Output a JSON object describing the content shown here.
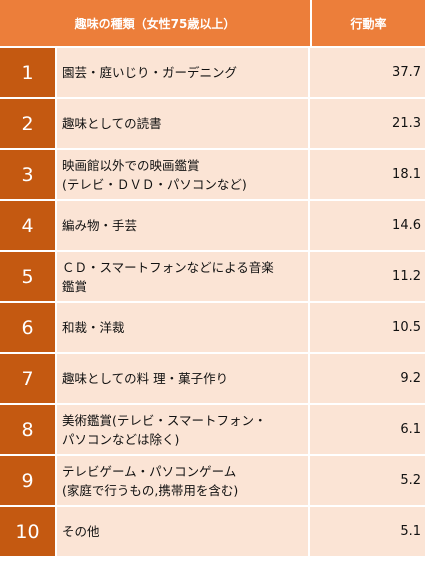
{
  "header": {
    "hobby_label": "趣味の種類（女性75歳以上）",
    "rate_label": "行動率"
  },
  "rows": [
    {
      "rank": "1",
      "hobby": "園芸・庭いじり・ガーデニング",
      "rate": "37.7"
    },
    {
      "rank": "2",
      "hobby": "趣味としての読書",
      "rate": "21.3"
    },
    {
      "rank": "3",
      "hobby": "映画館以外での映画鑑賞\n(テレビ・ＤＶＤ・パソコンなど)",
      "rate": "18.1"
    },
    {
      "rank": "4",
      "hobby": "編み物・手芸",
      "rate": "14.6"
    },
    {
      "rank": "5",
      "hobby": "ＣＤ・スマートフォンなどによる音楽\n鑑賞",
      "rate": "11.2"
    },
    {
      "rank": "6",
      "hobby": "和裁・洋裁",
      "rate": "10.5"
    },
    {
      "rank": "7",
      "hobby": "趣味としての料 理・菓子作り",
      "rate": "9.2"
    },
    {
      "rank": "8",
      "hobby": "美術鑑賞(テレビ・スマートフォン・\nパソコンなどは除く)",
      "rate": "6.1"
    },
    {
      "rank": "9",
      "hobby": "テレビゲーム・パソコンゲーム\n(家庭で行うもの,携帯用を含む)",
      "rate": "5.2"
    },
    {
      "rank": "10",
      "hobby": "その他",
      "rate": "5.1"
    }
  ],
  "colors": {
    "header_bg": "#ec7e3a",
    "rank_bg": "#c45911",
    "cell_bg": "#fbe4d5"
  }
}
